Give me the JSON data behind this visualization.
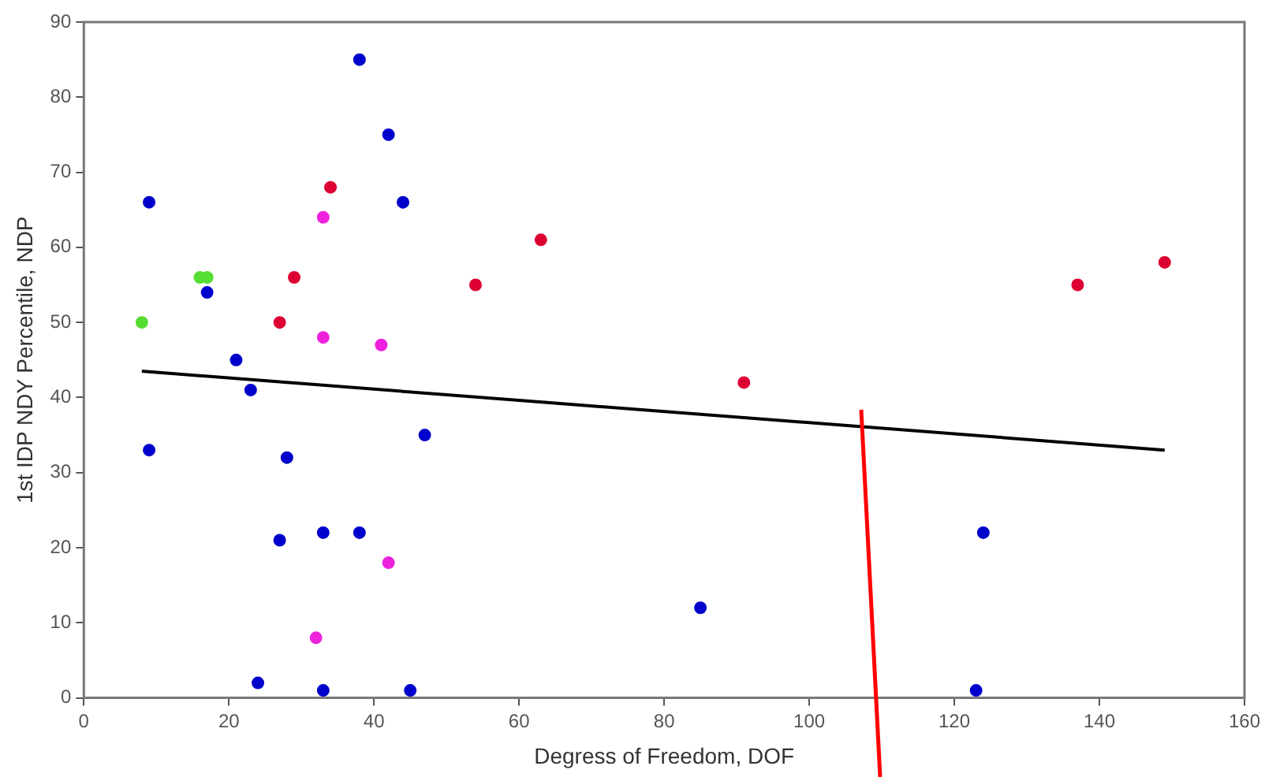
{
  "chart_data": {
    "type": "scatter",
    "xlabel": "Degress of Freedom, DOF",
    "ylabel": "1st IDP NDY Percentile, NDP",
    "xlim": [
      0,
      160
    ],
    "xticks": [
      0,
      20,
      40,
      60,
      80,
      100,
      120,
      140,
      160
    ],
    "ylim": [
      0,
      90
    ],
    "yticks": [
      0,
      10,
      20,
      30,
      40,
      50,
      60,
      70,
      80,
      90
    ],
    "grid": false,
    "legend": false,
    "marker": "circle",
    "series": [
      {
        "color": "#0000cc",
        "x": [
          9,
          9,
          17,
          21,
          23,
          24,
          27,
          28,
          33,
          33,
          38,
          38,
          42,
          44,
          45,
          47,
          85,
          123,
          124
        ],
        "values": [
          66,
          33,
          54,
          45,
          41,
          2,
          21,
          32,
          22,
          1,
          85,
          22,
          75,
          66,
          1,
          35,
          12,
          1,
          22
        ]
      },
      {
        "color": "#dd0033",
        "x": [
          27,
          29,
          34,
          54,
          63,
          91,
          137,
          149
        ],
        "values": [
          50,
          56,
          68,
          55,
          61,
          42,
          55,
          58
        ]
      },
      {
        "color": "#ee22dd",
        "x": [
          33,
          33,
          41,
          42,
          32
        ],
        "values": [
          64,
          48,
          47,
          18,
          8
        ]
      },
      {
        "color": "#55dd33",
        "x": [
          8,
          16,
          17
        ],
        "values": [
          50,
          56,
          56
        ]
      },
      {
        "type": "line",
        "color": "#000000",
        "marker": "none",
        "line_style": "solid",
        "x": [
          8,
          149
        ],
        "values": [
          43.5,
          33
        ]
      }
    ]
  }
}
